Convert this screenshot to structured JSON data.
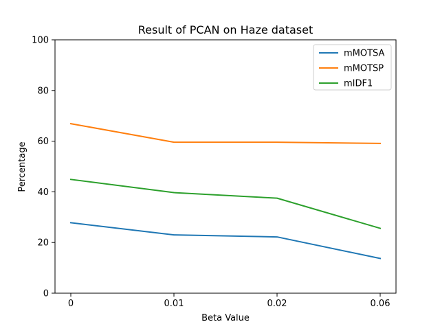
{
  "chart_data": {
    "type": "line",
    "title": "Result of PCAN on Haze dataset",
    "xlabel": "Beta Value",
    "ylabel": "Percentage",
    "categories": [
      "0",
      "0.01",
      "0.02",
      "0.06"
    ],
    "ylim": [
      0,
      100
    ],
    "yticks": [
      "0",
      "20",
      "40",
      "60",
      "80",
      "100"
    ],
    "grid": false,
    "legend_position": "top-right",
    "series": [
      {
        "name": "mMOTSA",
        "color": "#1f77b4",
        "values": [
          27.8,
          23.0,
          22.2,
          13.7
        ]
      },
      {
        "name": "mMOTSP",
        "color": "#ff7f0e",
        "values": [
          66.9,
          59.6,
          59.6,
          59.1
        ]
      },
      {
        "name": "mIDF1",
        "color": "#2ca02c",
        "values": [
          44.9,
          39.7,
          37.5,
          25.6
        ]
      }
    ]
  }
}
